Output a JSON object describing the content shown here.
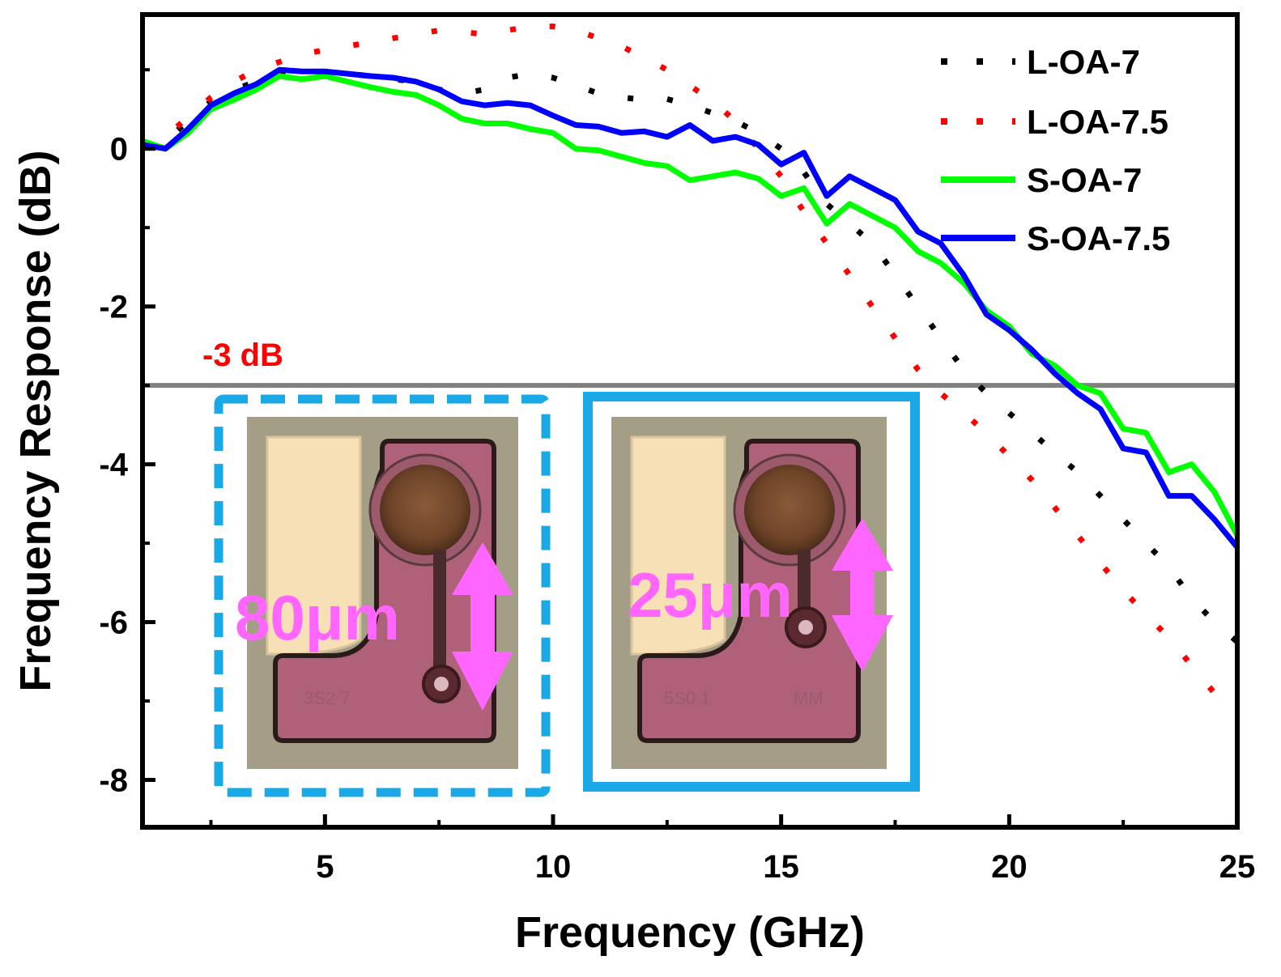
{
  "chart_data": {
    "type": "line",
    "xlabel": "Frequency (GHz)",
    "ylabel": "Frequency Response (dB)",
    "xlim": [
      1,
      25
    ],
    "ylim": [
      -8.6,
      1.7
    ],
    "x_ticks": [
      5,
      10,
      15,
      20,
      25
    ],
    "y_ticks": [
      0,
      -2,
      -4,
      -6,
      -8
    ],
    "grid": false,
    "legend_position": "top-right",
    "reference_line": {
      "y": -3,
      "label": "-3 dB",
      "color": "#808080",
      "label_color": "#ff0000"
    },
    "series": [
      {
        "name": "L-OA-7",
        "style": "dotted",
        "color": "#000000",
        "x": [
          1,
          1.5,
          2,
          2.5,
          3,
          3.5,
          4,
          4.5,
          5,
          5.5,
          6,
          6.5,
          7,
          7.5,
          8,
          8.5,
          9,
          9.5,
          10,
          10.5,
          11,
          11.5,
          12,
          12.5,
          13,
          13.5,
          14,
          14.5,
          15,
          15.5,
          16,
          16.5,
          17,
          17.5,
          18,
          18.5,
          19,
          19.5,
          20,
          20.5,
          21,
          21.5,
          22,
          22.5,
          23,
          23.5,
          24,
          24.5,
          25
        ],
        "y": [
          0.05,
          0.1,
          0.35,
          0.6,
          0.75,
          0.85,
          0.98,
          0.98,
          0.95,
          0.95,
          0.92,
          0.88,
          0.85,
          0.75,
          0.7,
          0.75,
          0.9,
          0.95,
          0.9,
          0.8,
          0.7,
          0.65,
          0.62,
          0.63,
          0.55,
          0.45,
          0.35,
          0.2,
          0.0,
          -0.3,
          -0.7,
          -0.95,
          -1.2,
          -1.6,
          -2.0,
          -2.4,
          -2.8,
          -3.1,
          -3.35,
          -3.6,
          -3.85,
          -4.1,
          -4.4,
          -4.7,
          -5.0,
          -5.3,
          -5.7,
          -6.0,
          -6.25
        ]
      },
      {
        "name": "L-OA-7.5",
        "style": "dotted",
        "color": "#ff0000",
        "x": [
          1,
          1.5,
          2,
          2.5,
          3,
          3.5,
          4,
          4.5,
          5,
          5.5,
          6,
          6.5,
          7,
          7.5,
          8,
          8.5,
          9,
          9.5,
          10,
          10.5,
          11,
          11.5,
          12,
          12.5,
          13,
          13.5,
          14,
          14.5,
          15,
          15.5,
          16,
          16.5,
          17,
          17.5,
          18,
          18.5,
          19,
          19.5,
          20,
          20.5,
          21,
          21.5,
          22,
          22.5,
          23,
          23.5,
          24,
          24.5,
          25
        ],
        "y": [
          0.05,
          0.15,
          0.4,
          0.65,
          0.85,
          1.0,
          1.1,
          1.2,
          1.25,
          1.3,
          1.35,
          1.4,
          1.45,
          1.5,
          1.48,
          1.45,
          1.5,
          1.55,
          1.55,
          1.5,
          1.4,
          1.3,
          1.15,
          1.0,
          0.8,
          0.6,
          0.35,
          0.0,
          -0.35,
          -0.8,
          -1.2,
          -1.6,
          -2.0,
          -2.4,
          -2.8,
          -3.1,
          -3.35,
          -3.6,
          -3.9,
          -4.2,
          -4.55,
          -4.9,
          -5.25,
          -5.6,
          -5.9,
          -6.2,
          -6.55,
          -6.9,
          -7.15
        ]
      },
      {
        "name": "S-OA-7",
        "style": "solid",
        "color": "#00ff00",
        "x": [
          1,
          1.5,
          2,
          2.5,
          3,
          3.5,
          4,
          4.5,
          5,
          5.5,
          6,
          6.5,
          7,
          7.5,
          8,
          8.5,
          9,
          9.5,
          10,
          10.5,
          11,
          11.5,
          12,
          12.5,
          13,
          13.5,
          14,
          14.5,
          15,
          15.5,
          16,
          16.5,
          17,
          17.5,
          18,
          18.5,
          19,
          19.5,
          20,
          20.5,
          21,
          21.5,
          22,
          22.5,
          23,
          23.5,
          24,
          24.5,
          25
        ],
        "y": [
          0.1,
          0.0,
          0.2,
          0.5,
          0.62,
          0.75,
          0.92,
          0.88,
          0.92,
          0.85,
          0.78,
          0.72,
          0.68,
          0.55,
          0.38,
          0.32,
          0.32,
          0.25,
          0.2,
          0.0,
          -0.02,
          -0.1,
          -0.18,
          -0.22,
          -0.4,
          -0.35,
          -0.3,
          -0.38,
          -0.6,
          -0.5,
          -0.95,
          -0.7,
          -0.85,
          -1.0,
          -1.3,
          -1.45,
          -1.7,
          -2.05,
          -2.25,
          -2.6,
          -2.75,
          -3.0,
          -3.1,
          -3.55,
          -3.6,
          -4.1,
          -4.0,
          -4.35,
          -4.9
        ]
      },
      {
        "name": "S-OA-7.5",
        "style": "solid",
        "color": "#0000ff",
        "x": [
          1,
          1.5,
          2,
          2.5,
          3,
          3.5,
          4,
          4.5,
          5,
          5.5,
          6,
          6.5,
          7,
          7.5,
          8,
          8.5,
          9,
          9.5,
          10,
          10.5,
          11,
          11.5,
          12,
          12.5,
          13,
          13.5,
          14,
          14.5,
          15,
          15.5,
          16,
          16.5,
          17,
          17.5,
          18,
          18.5,
          19,
          19.5,
          20,
          20.5,
          21,
          21.5,
          22,
          22.5,
          23,
          23.5,
          24,
          24.5,
          25
        ],
        "y": [
          0.05,
          0.0,
          0.25,
          0.55,
          0.7,
          0.82,
          1.0,
          0.98,
          0.98,
          0.95,
          0.92,
          0.9,
          0.85,
          0.75,
          0.6,
          0.55,
          0.58,
          0.55,
          0.42,
          0.3,
          0.28,
          0.2,
          0.22,
          0.15,
          0.3,
          0.1,
          0.15,
          0.05,
          -0.2,
          -0.05,
          -0.6,
          -0.35,
          -0.5,
          -0.65,
          -1.05,
          -1.2,
          -1.6,
          -2.1,
          -2.3,
          -2.55,
          -2.85,
          -3.1,
          -3.3,
          -3.8,
          -3.85,
          -4.4,
          -4.4,
          -4.7,
          -5.05
        ]
      }
    ]
  },
  "insets": [
    {
      "label": "80μm",
      "label_color": "#ff66ff",
      "chip_text": "3S2 7",
      "border_style": "dashed",
      "border_color": "#1ba8e6"
    },
    {
      "label": "25μm",
      "label_color": "#ff66ff",
      "chip_text": "5S0 1",
      "chip_text_2": "MM",
      "border_style": "solid",
      "border_color": "#1ba8e6"
    }
  ]
}
